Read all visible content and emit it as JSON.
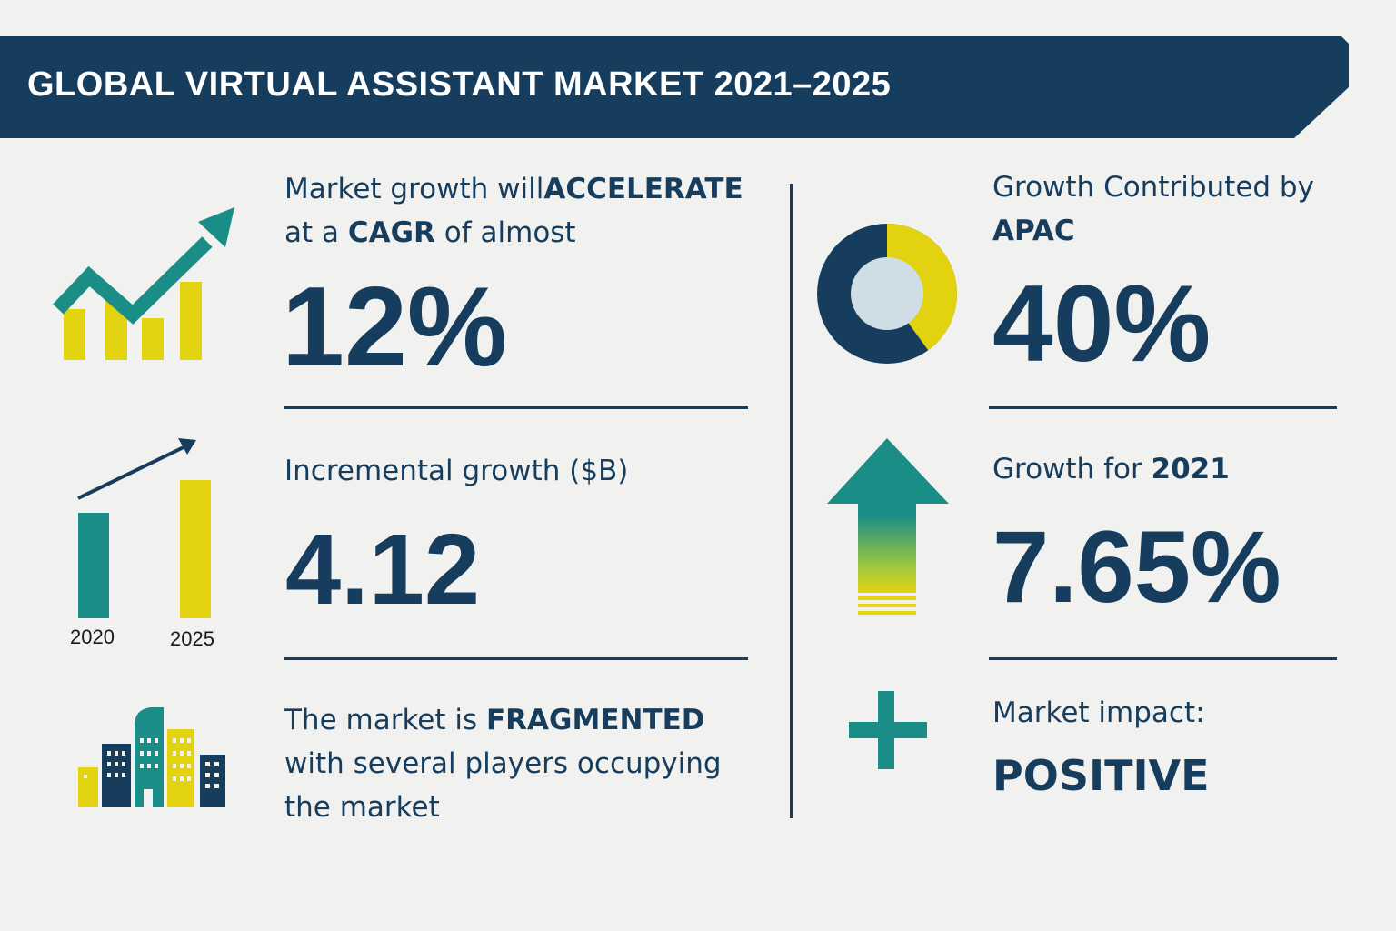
{
  "header": {
    "title": "GLOBAL VIRTUAL ASSISTANT MARKET 2021–2025"
  },
  "colors": {
    "navy": "#163d5e",
    "teal": "#1a8d86",
    "yellow": "#e3d20f",
    "light_gray": "#cfdde4",
    "background": "#f1f1ef"
  },
  "cagr": {
    "icon": "growth-trend-chart-icon",
    "text_part1": "Market growth will",
    "text_bold1": "ACCELERATE",
    "text_part2": "at a ",
    "text_bold2": "CAGR",
    "text_part3": " of almost",
    "value": "12%"
  },
  "incremental": {
    "icon": "bar-comparison-icon",
    "label": "Incremental growth ($B)",
    "value": "4.12",
    "year_start": "2020",
    "year_end": "2025"
  },
  "fragmented": {
    "icon": "city-buildings-icon",
    "text_part1": "The market is ",
    "text_bold": "FRAGMENTED",
    "text_line2": "with several players occupying",
    "text_line3": "the market"
  },
  "apac": {
    "icon": "donut-chart-icon",
    "text_line1": "Growth Contributed by",
    "text_bold": "APAC",
    "value": "40%",
    "share_fraction": 0.4
  },
  "growth2021": {
    "icon": "up-arrow-icon",
    "text_part1": "Growth for ",
    "text_bold": "2021",
    "value": "7.65%"
  },
  "impact": {
    "icon": "plus-icon",
    "label": "Market impact:",
    "value": "POSITIVE"
  }
}
